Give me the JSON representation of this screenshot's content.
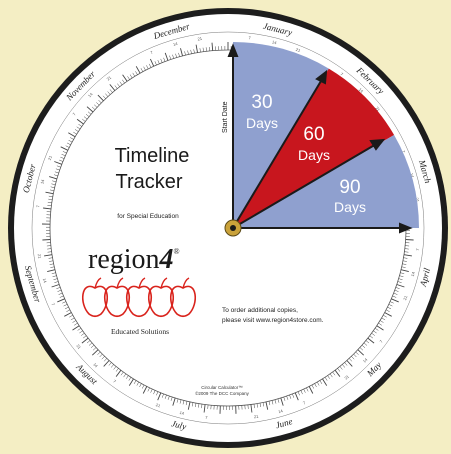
{
  "wheel": {
    "title_line1": "Timeline",
    "title_line2": "Tracker",
    "subtitle": "for Special Education",
    "brand": "region",
    "brand_number": "4",
    "brand_mark": "®",
    "tagline": "Educated Solutions",
    "order_line1": "To order additional copies,",
    "order_line2": "please visit www.region4store.com.",
    "credit_line1": "Circular Calculator™",
    "credit_line2": "©2009 The DCC Company",
    "start_date_label": "Start Date"
  },
  "wedges": [
    {
      "days": "30",
      "unit": "Days",
      "color": "#8fa0cf"
    },
    {
      "days": "60",
      "unit": "Days",
      "color": "#c8161e"
    },
    {
      "days": "90",
      "unit": "Days",
      "color": "#8fa0cf"
    }
  ],
  "months": [
    "January",
    "February",
    "March",
    "April",
    "May",
    "June",
    "July",
    "August",
    "September",
    "October",
    "November",
    "December"
  ],
  "colors": {
    "background": "#f4eec4",
    "ring": "#1d1d1d",
    "wheel": "#ffffff",
    "pointer": "#1a1a1a",
    "apple": "#d9231c",
    "brand_blue": "#8fa0cf"
  }
}
